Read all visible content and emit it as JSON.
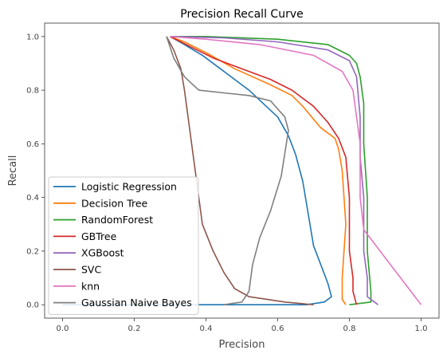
{
  "chart_data": {
    "type": "line",
    "title": "Precision Recall Curve",
    "xlabel": "Precision",
    "ylabel": "Recall",
    "xlim": [
      -0.05,
      1.05
    ],
    "ylim": [
      -0.05,
      1.05
    ],
    "xticks": [
      "0.0",
      "0.2",
      "0.4",
      "0.6",
      "0.8",
      "1.0"
    ],
    "yticks": [
      "0.0",
      "0.2",
      "0.4",
      "0.6",
      "0.8",
      "1.0"
    ],
    "grid": false,
    "legend_position": "lower-left",
    "series": [
      {
        "name": "Logistic Regression",
        "color": "#1f77b4",
        "x": [
          0.0,
          0.48,
          0.6,
          0.68,
          0.73,
          0.75,
          0.74,
          0.72,
          0.7,
          0.69,
          0.68,
          0.67,
          0.65,
          0.63,
          0.6,
          0.56,
          0.52,
          0.48,
          0.43,
          0.39,
          0.34,
          0.3
        ],
        "y": [
          0.0,
          0.0,
          0.0,
          0.0,
          0.01,
          0.03,
          0.08,
          0.15,
          0.22,
          0.3,
          0.38,
          0.46,
          0.56,
          0.63,
          0.7,
          0.75,
          0.8,
          0.84,
          0.89,
          0.93,
          0.97,
          1.0
        ]
      },
      {
        "name": "Decision Tree",
        "color": "#ff7f0e",
        "x": [
          0.79,
          0.78,
          0.78,
          0.79,
          0.78,
          0.77,
          0.76,
          0.72,
          0.67,
          0.64,
          0.58,
          0.48,
          0.4,
          0.34,
          0.3
        ],
        "y": [
          0.0,
          0.02,
          0.1,
          0.3,
          0.5,
          0.58,
          0.62,
          0.66,
          0.74,
          0.78,
          0.82,
          0.88,
          0.94,
          0.98,
          1.0
        ]
      },
      {
        "name": "RandomForest",
        "color": "#2ca02c",
        "x": [
          0.8,
          0.86,
          0.86,
          0.85,
          0.85,
          0.84,
          0.84,
          0.83,
          0.82,
          0.8,
          0.74,
          0.6,
          0.4,
          0.3
        ],
        "y": [
          0.0,
          0.01,
          0.05,
          0.2,
          0.4,
          0.6,
          0.75,
          0.85,
          0.9,
          0.93,
          0.97,
          0.99,
          1.0,
          1.0
        ]
      },
      {
        "name": "GBTree",
        "color": "#d62728",
        "x": [
          0.82,
          0.81,
          0.81,
          0.8,
          0.8,
          0.79,
          0.77,
          0.74,
          0.7,
          0.64,
          0.58,
          0.5,
          0.42,
          0.36,
          0.3
        ],
        "y": [
          0.0,
          0.05,
          0.1,
          0.2,
          0.4,
          0.55,
          0.62,
          0.68,
          0.74,
          0.8,
          0.84,
          0.88,
          0.92,
          0.96,
          1.0
        ]
      },
      {
        "name": "XGBoost",
        "color": "#9467bd",
        "x": [
          0.88,
          0.85,
          0.85,
          0.84,
          0.84,
          0.83,
          0.83,
          0.82,
          0.8,
          0.74,
          0.6,
          0.45,
          0.3
        ],
        "y": [
          0.0,
          0.03,
          0.1,
          0.2,
          0.4,
          0.55,
          0.7,
          0.85,
          0.91,
          0.95,
          0.98,
          0.995,
          1.0
        ]
      },
      {
        "name": "SVC",
        "color": "#8c564b",
        "x": [
          0.7,
          0.62,
          0.52,
          0.48,
          0.45,
          0.42,
          0.39,
          0.38,
          0.37,
          0.36,
          0.35,
          0.34,
          0.33,
          0.31,
          0.29
        ],
        "y": [
          0.0,
          0.01,
          0.03,
          0.06,
          0.12,
          0.2,
          0.3,
          0.4,
          0.5,
          0.6,
          0.7,
          0.8,
          0.88,
          0.95,
          1.0
        ]
      },
      {
        "name": "knn",
        "color": "#e377c2",
        "x": [
          1.0,
          0.84,
          0.83,
          0.83,
          0.82,
          0.81,
          0.78,
          0.7,
          0.55,
          0.4,
          0.3
        ],
        "y": [
          0.0,
          0.28,
          0.4,
          0.6,
          0.7,
          0.8,
          0.87,
          0.93,
          0.97,
          0.99,
          1.0
        ]
      },
      {
        "name": "Gaussian Naive Bayes",
        "color": "#7f7f7f",
        "x": [
          0.45,
          0.5,
          0.52,
          0.53,
          0.55,
          0.58,
          0.61,
          0.63,
          0.62,
          0.58,
          0.52,
          0.45,
          0.38,
          0.34,
          0.31,
          0.29
        ],
        "y": [
          0.0,
          0.01,
          0.05,
          0.15,
          0.25,
          0.35,
          0.48,
          0.65,
          0.7,
          0.76,
          0.78,
          0.79,
          0.8,
          0.85,
          0.92,
          1.0
        ]
      }
    ]
  }
}
